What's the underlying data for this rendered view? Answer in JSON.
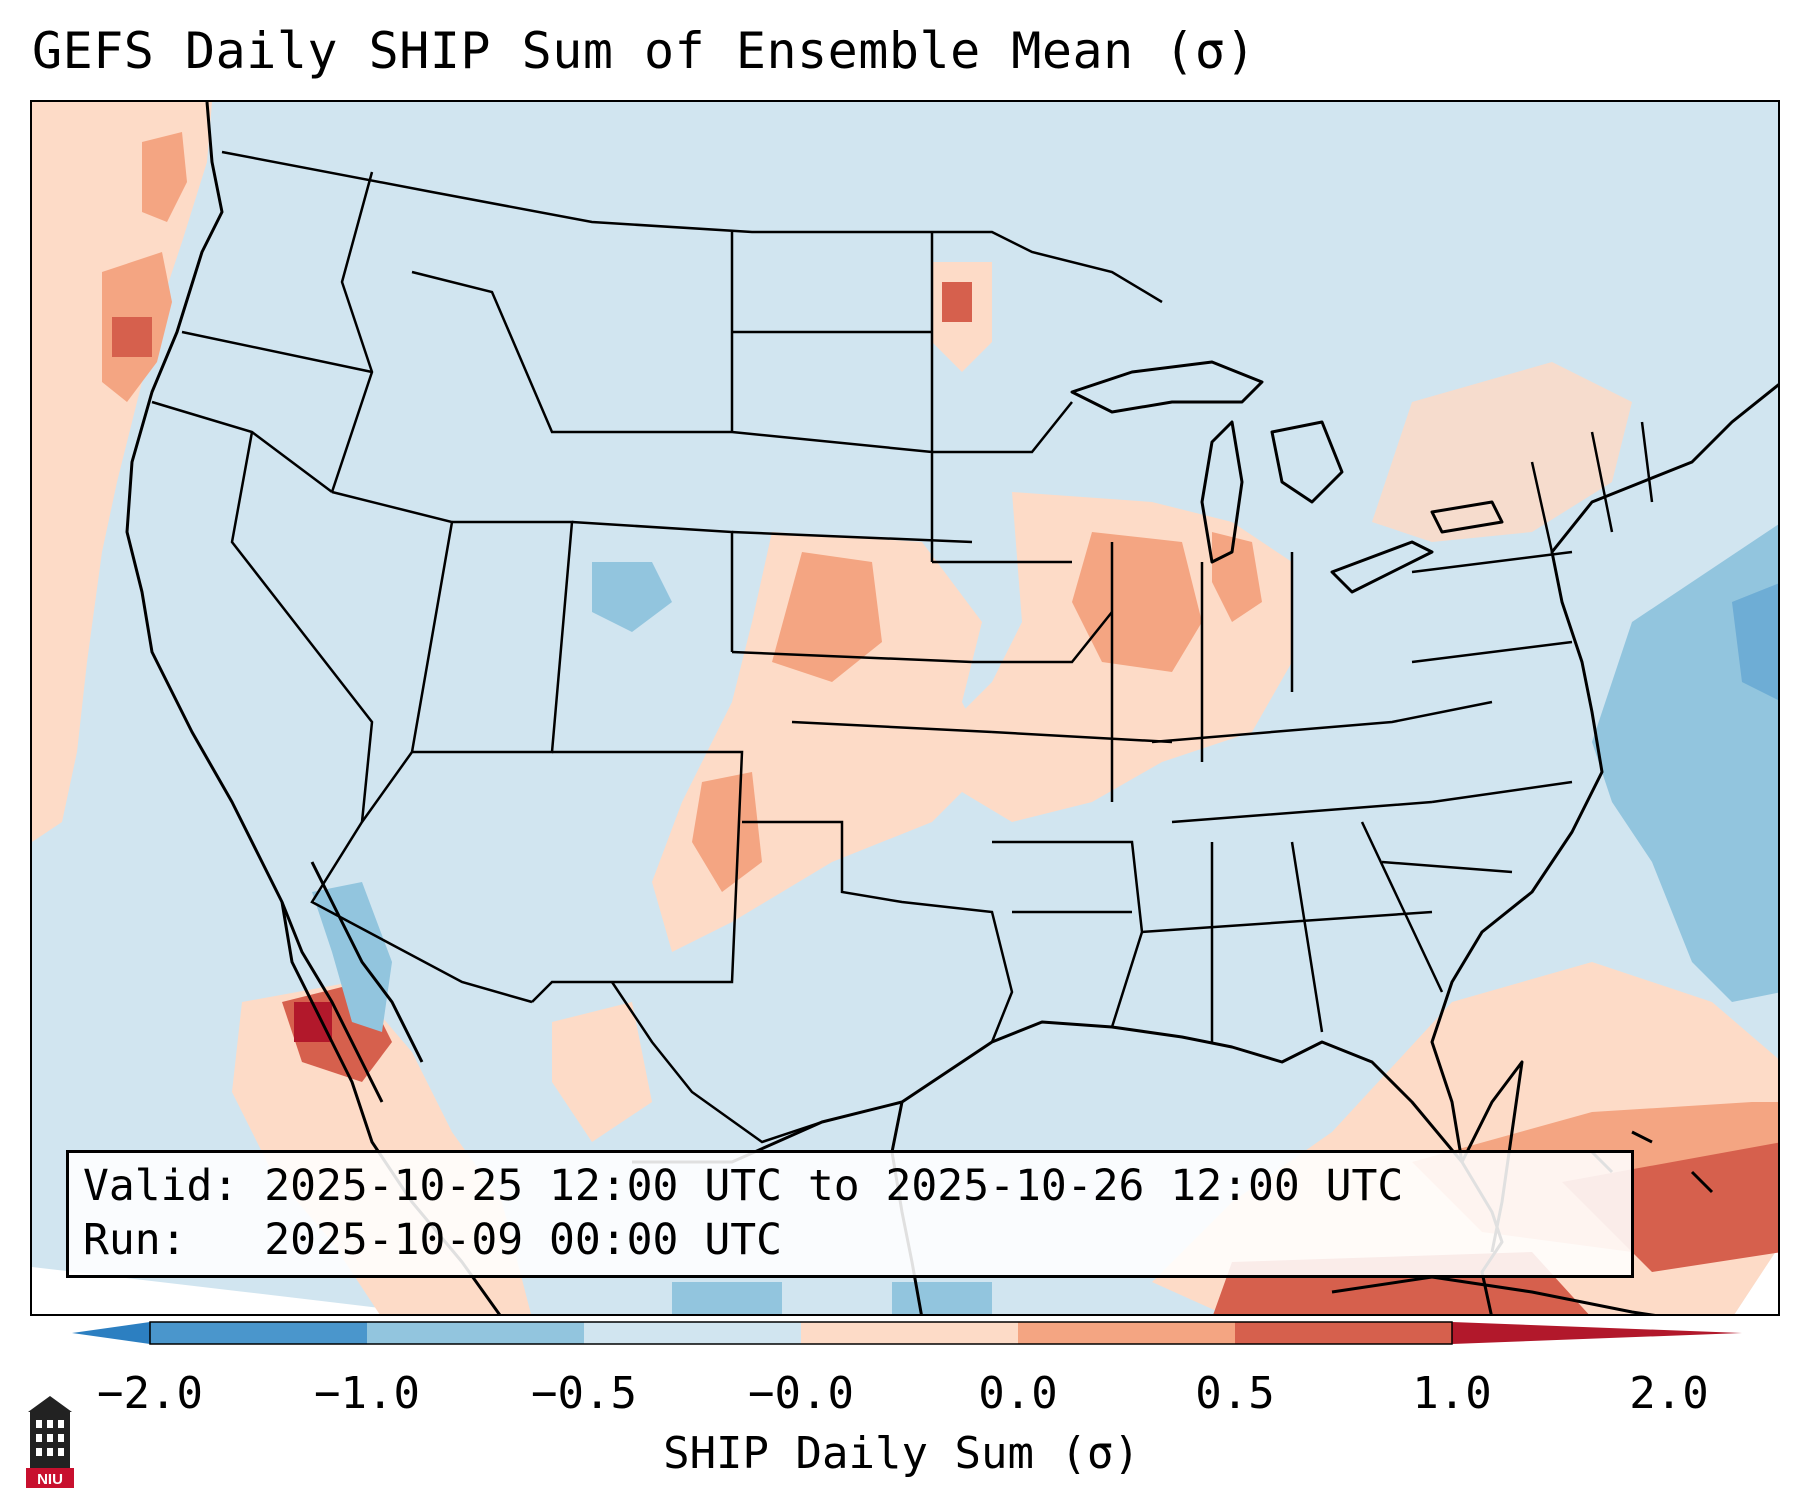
{
  "title": "GEFS Daily SHIP Sum of Ensemble Mean (σ)",
  "info": {
    "valid_text": "Valid: 2025-10-25 12:00 UTC to 2025-10-26 12:00 UTC",
    "run_text": "Run:   2025-10-09 00:00 UTC"
  },
  "colorbar": {
    "label": "SHIP Daily Sum (σ)",
    "ticks": [
      {
        "value": -2.0,
        "label": "−2.0"
      },
      {
        "value": -1.0,
        "label": "−1.0"
      },
      {
        "value": -0.5,
        "label": "−0.5"
      },
      {
        "value": -0.001,
        "label": "−0.0"
      },
      {
        "value": 0.0,
        "label": "0.0"
      },
      {
        "value": 0.5,
        "label": "0.5"
      },
      {
        "value": 1.0,
        "label": "1.0"
      },
      {
        "value": 2.0,
        "label": "2.0"
      }
    ],
    "colors": {
      "extend_min": "#2c7fc1",
      "bin_m2_m1": "#4a96cc",
      "bin_m1_m05": "#92c5de",
      "bin_m05_0": "#d1e5f0",
      "bin_0_05": "#fddbc7",
      "bin_05_1": "#f4a582",
      "bin_1_2": "#d6604d",
      "extend_max": "#b2182b"
    }
  },
  "logo": {
    "text": "NIU",
    "icon": "university-tower-icon"
  },
  "colors": {
    "background_land": "#d1e5f0",
    "border": "#000000"
  }
}
